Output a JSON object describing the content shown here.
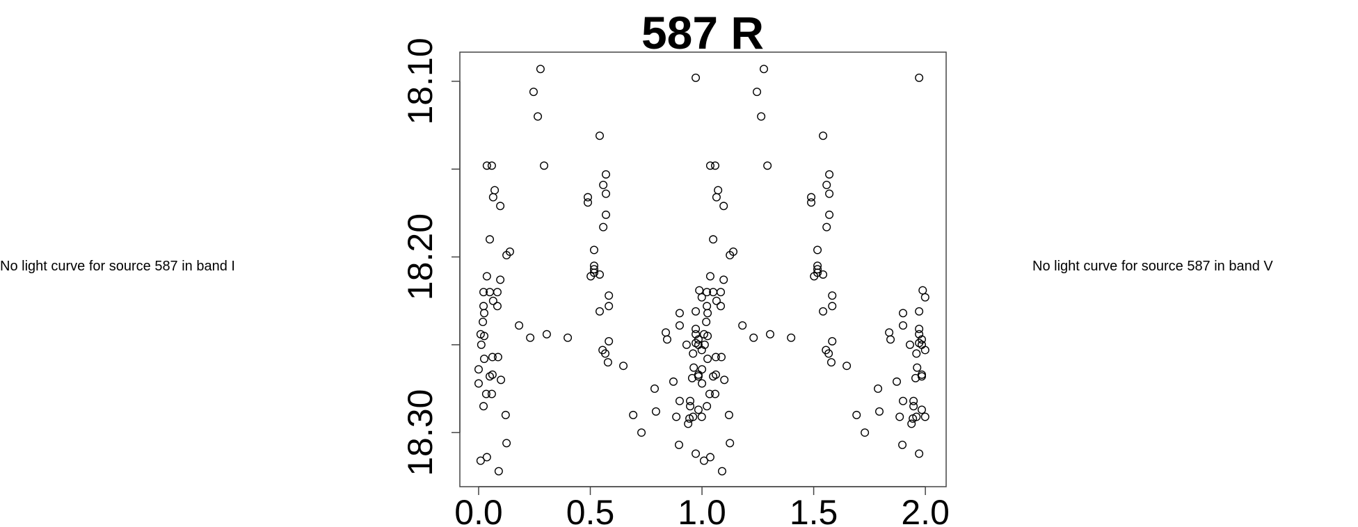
{
  "left_note": "No light curve for source 587 in band I",
  "right_note": "No light curve for source 587 in band V",
  "chart_data": {
    "type": "scatter",
    "title": "587 R",
    "xlabel": "",
    "ylabel": "",
    "xlim": [
      -0.084,
      2.093
    ],
    "ylim": [
      18.3308,
      18.0834
    ],
    "y_inverted": true,
    "grid": false,
    "xticks": [
      {
        "value": 0.0,
        "label": "0.0"
      },
      {
        "value": 0.5,
        "label": "0.5"
      },
      {
        "value": 1.0,
        "label": "1.0"
      },
      {
        "value": 1.5,
        "label": "1.5"
      },
      {
        "value": 2.0,
        "label": "2.0"
      }
    ],
    "yticks": [
      {
        "value": 18.1,
        "label": "18.10"
      },
      {
        "value": 18.15,
        "label": ""
      },
      {
        "value": 18.2,
        "label": "18.20"
      },
      {
        "value": 18.25,
        "label": ""
      },
      {
        "value": 18.3,
        "label": "18.30"
      }
    ],
    "phase_repeat": [
      0,
      1
    ],
    "phase": [
      0.277,
      0.246,
      0.265,
      0.037,
      0.059,
      0.293,
      0.072,
      0.065,
      0.097,
      0.05,
      0.125,
      0.14,
      0.037,
      0.097,
      0.022,
      0.05,
      0.084,
      0.065,
      0.022,
      0.084,
      0.025,
      0.019,
      0.181,
      0.009,
      0.025,
      0.231,
      0.305,
      0.012,
      0.025,
      0.062,
      0.087,
      0.0,
      0.05,
      0.062,
      0.1,
      0.0,
      0.034,
      0.059,
      0.022,
      0.121,
      0.125,
      0.009,
      0.037,
      0.09,
      0.972,
      0.542,
      0.57,
      0.558,
      0.57,
      0.489,
      0.489,
      0.57,
      0.558,
      0.517,
      0.517,
      0.517,
      0.517,
      0.502,
      0.542,
      0.583,
      0.583,
      0.542,
      0.399,
      0.583,
      0.555,
      0.567,
      0.579,
      0.648,
      0.838,
      0.844,
      0.9,
      0.9,
      0.972,
      0.988,
      0.999,
      0.972,
      0.972,
      0.931,
      0.972,
      0.984,
      0.984,
      0.999,
      0.96,
      0.963,
      0.984,
      0.984,
      0.956,
      0.872,
      0.788,
      0.9,
      0.947,
      0.947,
      0.984,
      0.794,
      0.692,
      0.885,
      0.96,
      0.999,
      0.944,
      0.938,
      0.729,
      0.897,
      0.972
    ],
    "mag": [
      18.093,
      18.106,
      18.12,
      18.148,
      18.148,
      18.148,
      18.162,
      18.166,
      18.171,
      18.19,
      18.199,
      18.197,
      18.211,
      18.213,
      18.22,
      18.22,
      18.22,
      18.225,
      18.228,
      18.228,
      18.232,
      18.237,
      18.239,
      18.244,
      18.245,
      18.246,
      18.244,
      18.25,
      18.258,
      18.257,
      18.257,
      18.264,
      18.268,
      18.267,
      18.27,
      18.272,
      18.278,
      18.278,
      18.285,
      18.29,
      18.306,
      18.316,
      18.314,
      18.322,
      18.098,
      18.131,
      18.153,
      18.159,
      18.164,
      18.166,
      18.169,
      18.176,
      18.183,
      18.196,
      18.205,
      18.207,
      18.209,
      18.211,
      18.21,
      18.222,
      18.228,
      18.231,
      18.246,
      18.248,
      18.253,
      18.255,
      18.26,
      18.262,
      18.243,
      18.247,
      18.232,
      18.239,
      18.231,
      18.219,
      18.223,
      18.241,
      18.244,
      18.25,
      18.249,
      18.247,
      18.25,
      18.253,
      18.255,
      18.263,
      18.267,
      18.268,
      18.269,
      18.271,
      18.275,
      18.282,
      18.282,
      18.285,
      18.287,
      18.288,
      18.29,
      18.291,
      18.291,
      18.291,
      18.292,
      18.295,
      18.3,
      18.307,
      18.312
    ]
  }
}
